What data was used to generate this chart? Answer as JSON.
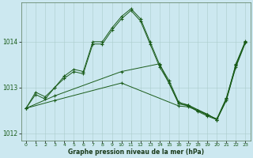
{
  "background_color": "#cce8f0",
  "grid_color": "#aacccc",
  "line_color": "#1a5c1a",
  "xlabel": "Graphe pression niveau de la mer (hPa)",
  "ylim": [
    1011.85,
    1014.85
  ],
  "xlim": [
    -0.5,
    23.5
  ],
  "yticks": [
    1012,
    1013,
    1014
  ],
  "xticks": [
    0,
    1,
    2,
    3,
    4,
    5,
    6,
    7,
    8,
    9,
    10,
    11,
    12,
    13,
    14,
    15,
    16,
    17,
    18,
    19,
    20,
    21,
    22,
    23
  ],
  "series": [
    {
      "x": [
        0,
        1,
        2,
        3,
        4,
        5,
        6,
        7,
        8,
        9,
        10,
        11,
        12,
        13,
        14,
        15,
        16,
        17,
        18,
        19,
        20,
        21,
        22,
        23
      ],
      "y": [
        1012.55,
        1012.9,
        1012.8,
        1013.0,
        1013.25,
        1013.4,
        1013.35,
        1014.0,
        1014.0,
        1014.3,
        1014.55,
        1014.72,
        1014.5,
        1014.0,
        1013.5,
        1013.15,
        1012.68,
        1012.62,
        1012.5,
        1012.4,
        1012.32,
        1012.78,
        1013.5,
        1014.0
      ]
    },
    {
      "x": [
        0,
        1,
        2,
        3,
        4,
        5,
        6,
        7,
        8,
        9,
        10,
        11,
        12,
        13,
        14,
        15,
        16,
        17,
        18,
        19,
        20,
        21,
        22,
        23
      ],
      "y": [
        1012.55,
        1012.85,
        1012.75,
        1013.0,
        1013.2,
        1013.35,
        1013.3,
        1013.95,
        1013.95,
        1014.25,
        1014.5,
        1014.68,
        1014.45,
        1013.95,
        1013.45,
        1013.1,
        1012.65,
        1012.6,
        1012.48,
        1012.38,
        1012.3,
        1012.75,
        1013.45,
        1013.98
      ]
    },
    {
      "x": [
        0,
        3,
        10,
        16,
        17,
        18,
        19,
        20,
        21,
        22,
        23
      ],
      "y": [
        1012.55,
        1012.72,
        1013.1,
        1012.6,
        1012.58,
        1012.5,
        1012.42,
        1012.3,
        1012.72,
        1013.48,
        1014.0
      ]
    },
    {
      "x": [
        0,
        3,
        10,
        14,
        16,
        17,
        19,
        20,
        21,
        22,
        23
      ],
      "y": [
        1012.55,
        1012.82,
        1013.35,
        1013.52,
        1012.65,
        1012.62,
        1012.42,
        1012.3,
        1012.75,
        1013.52,
        1014.02
      ]
    }
  ]
}
